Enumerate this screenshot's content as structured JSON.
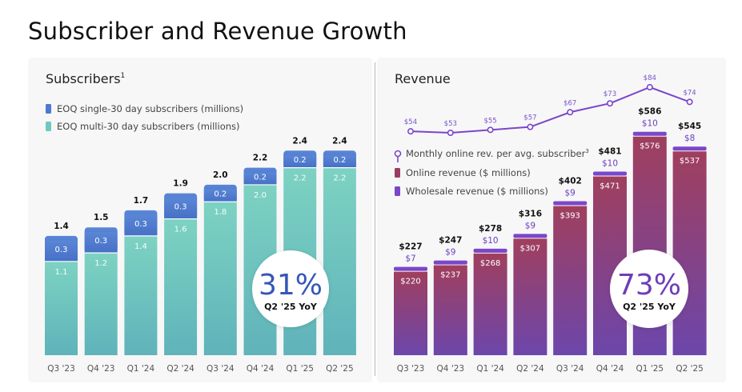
{
  "page": {
    "title": "Subscriber and Revenue Growth"
  },
  "chart_data": [
    {
      "type": "bar",
      "stacked": true,
      "title": "Subscribers",
      "title_superscript": "1",
      "categories": [
        "Q3 '23",
        "Q4 '23",
        "Q1 '24",
        "Q2 '24",
        "Q3 '24",
        "Q4 '24",
        "Q1 '25",
        "Q2 '25"
      ],
      "series": [
        {
          "name": "EOQ multi-30 day subscribers  (millions)",
          "values": [
            1.1,
            1.2,
            1.4,
            1.6,
            1.8,
            2.0,
            2.2,
            2.2
          ],
          "labels": [
            "1.1",
            "1.2",
            "1.4",
            "1.6",
            "1.8",
            "2.0",
            "2.2",
            "2.2"
          ]
        },
        {
          "name": "EOQ single-30 day subscribers (millions)",
          "values": [
            0.3,
            0.3,
            0.3,
            0.3,
            0.2,
            0.2,
            0.2,
            0.2
          ],
          "labels": [
            "0.3",
            "0.3",
            "0.3",
            "0.3",
            "0.2",
            "0.2",
            "0.2",
            "0.2"
          ]
        }
      ],
      "totals": [
        "1.4",
        "1.5",
        "1.7",
        "1.9",
        "2.0",
        "2.2",
        "2.4",
        "2.4"
      ],
      "total_values": [
        1.4,
        1.5,
        1.7,
        1.9,
        2.0,
        2.2,
        2.4,
        2.4
      ],
      "ylim": [
        0,
        2.6
      ],
      "legend": [
        "EOQ single-30 day subscribers (millions)",
        "EOQ multi-30 day subscribers  (millions)"
      ],
      "colors": {
        "single": "#4d79cf",
        "multi": "#6fc8bd"
      },
      "badge": {
        "value": "31%",
        "label": "Q2 '25 YoY",
        "color": "#3557b8"
      }
    },
    {
      "type": "bar",
      "stacked": true,
      "title": "Revenue",
      "categories": [
        "Q3 '23",
        "Q4 '23",
        "Q1 '24",
        "Q2 '24",
        "Q3 '24",
        "Q4 '24",
        "Q1 '25",
        "Q2 '25"
      ],
      "series": [
        {
          "name": "Online revenue ($ millions)",
          "values": [
            220,
            237,
            268,
            307,
            393,
            471,
            576,
            537
          ],
          "labels": [
            "$220",
            "$237",
            "$268",
            "$307",
            "$393",
            "$471",
            "$576",
            "$537"
          ]
        },
        {
          "name": "Wholesale revenue ($ millions)",
          "values": [
            7,
            9,
            10,
            9,
            9,
            10,
            10,
            8
          ],
          "labels": [
            "$7",
            "$9",
            "$10",
            "$9",
            "$9",
            "$10",
            "$10",
            "$8"
          ]
        }
      ],
      "totals": [
        "$227",
        "$247",
        "$278",
        "$316",
        "$402",
        "$481",
        "$586",
        "$545"
      ],
      "total_values": [
        227,
        247,
        278,
        316,
        402,
        481,
        586,
        545
      ],
      "line_series": {
        "name": "Monthly online rev. per avg. subscriber",
        "name_superscript": "3",
        "values": [
          54,
          53,
          55,
          57,
          67,
          73,
          84,
          74
        ],
        "labels": [
          "$54",
          "$53",
          "$55",
          "$57",
          "$67",
          "$73",
          "$84",
          "$74"
        ]
      },
      "ylim": [
        0,
        640
      ],
      "legend": [
        "Monthly online rev. per avg. subscriber",
        "Online revenue ($ millions)",
        "Wholesale revenue ($ millions)"
      ],
      "colors": {
        "online_top": "#9b3d62",
        "online_bottom": "#6e45a8",
        "wholesale": "#7b46c9",
        "line": "#7b46c9"
      },
      "badge": {
        "value": "73%",
        "label": "Q2 '25 YoY",
        "color": "#6e3db7"
      }
    }
  ]
}
